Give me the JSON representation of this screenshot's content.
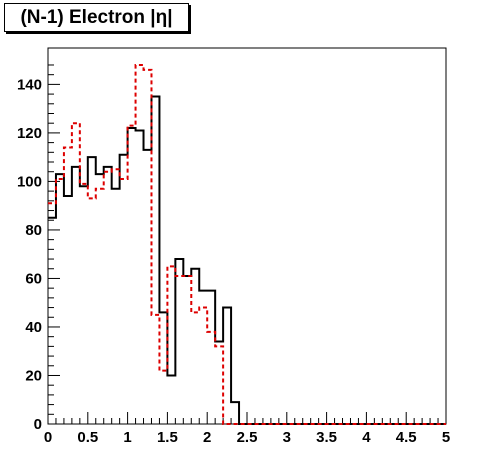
{
  "chart_data": {
    "type": "histogram-step",
    "title": "(N-1) Electron |η|",
    "xlim": [
      0,
      5
    ],
    "ylim": [
      0,
      155
    ],
    "x_ticks": [
      "0",
      "0.5",
      "1",
      "1.5",
      "2",
      "2.5",
      "3",
      "3.5",
      "4",
      "4.5",
      "5"
    ],
    "y_ticks": [
      "0",
      "20",
      "40",
      "60",
      "80",
      "100",
      "120",
      "140"
    ],
    "grid": false,
    "bin_width": 0.1,
    "series": [
      {
        "style": "solid",
        "color": "#000000",
        "values": [
          85,
          103,
          94,
          106,
          98,
          110,
          103,
          106,
          97,
          111,
          122,
          121,
          113,
          135,
          46,
          20,
          68,
          61,
          64,
          55,
          55,
          34,
          48,
          9,
          0,
          0,
          0,
          0,
          0,
          0,
          0,
          0,
          0,
          0,
          0,
          0,
          0,
          0,
          0,
          0,
          0,
          0,
          0,
          0,
          0,
          0,
          0,
          0,
          0,
          0
        ]
      },
      {
        "style": "dashed",
        "color": "#dd0000",
        "values": [
          91,
          101,
          114,
          124,
          99,
          93,
          97,
          104,
          105,
          101,
          123,
          148,
          146,
          45,
          22,
          65,
          61,
          61,
          46,
          48,
          38,
          32,
          0,
          0,
          0,
          0,
          0,
          0,
          0,
          0,
          0,
          0,
          0,
          0,
          0,
          0,
          0,
          0,
          0,
          0,
          0,
          0,
          0,
          0,
          0,
          0,
          0,
          0,
          0,
          0
        ]
      }
    ]
  }
}
